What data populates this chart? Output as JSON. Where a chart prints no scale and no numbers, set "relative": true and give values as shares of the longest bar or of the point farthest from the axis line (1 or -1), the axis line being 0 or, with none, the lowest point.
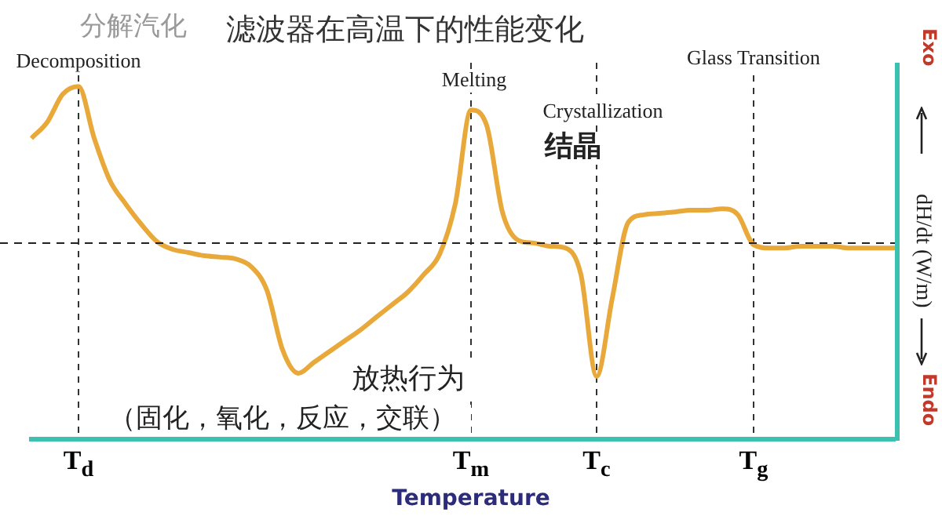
{
  "chart_data": {
    "type": "line",
    "relative": true,
    "title": "滤波器在高温下的性能变化",
    "xlabel": "Temperature",
    "ylabel": "dH/dt (W/m)",
    "categories": [
      null,
      null,
      null,
      "T$_{d}$",
      null,
      null,
      null,
      null,
      null,
      null,
      null,
      null,
      null,
      null,
      null,
      null,
      null,
      null,
      null,
      null,
      null,
      null,
      null,
      null,
      null,
      null,
      null,
      null,
      "T$_{m}$",
      null,
      null,
      null,
      null,
      null,
      null,
      null,
      "T$_{c}$",
      null,
      null,
      null,
      null,
      null,
      null,
      null,
      null,
      null,
      "T$_{g}$",
      null,
      null,
      null,
      null,
      null,
      null,
      null,
      null,
      null
    ],
    "grid": "x",
    "marker": "none",
    "line_style": "solid",
    "legend": false,
    "ref_lines": [
      {
        "axis": "y",
        "value": 0.556,
        "line_style": "dashed",
        "color": "#222222"
      }
    ],
    "series": [
      {
        "color": "#e8a93a",
        "values": [
          0.853,
          0.898,
          0.978,
          1,
          0.853,
          0.733,
          0.667,
          0.609,
          0.56,
          0.538,
          0.529,
          0.52,
          0.516,
          0.511,
          0.489,
          0.422,
          0.253,
          0.187,
          0.218,
          0.249,
          0.28,
          0.311,
          0.347,
          0.382,
          0.418,
          0.467,
          0.524,
          0.667,
          0.933,
          0.889,
          0.644,
          0.564,
          0.556,
          0.547,
          0.542,
          0.467,
          0.178,
          0.4,
          0.613,
          0.636,
          0.64,
          0.644,
          0.649,
          0.649,
          0.653,
          0.636,
          0.551,
          0.542,
          0.542,
          0.547,
          0.547,
          0.547,
          0.542,
          0.542,
          0.542,
          0.542
        ]
      }
    ],
    "annotations": [
      "Decomposition",
      "Melting",
      "Crystallization",
      "Glass Transition",
      "分解汽化",
      "结晶",
      "放热行为",
      "（固化，氧化，反应，交联）",
      "Exo",
      "Endo"
    ]
  }
}
